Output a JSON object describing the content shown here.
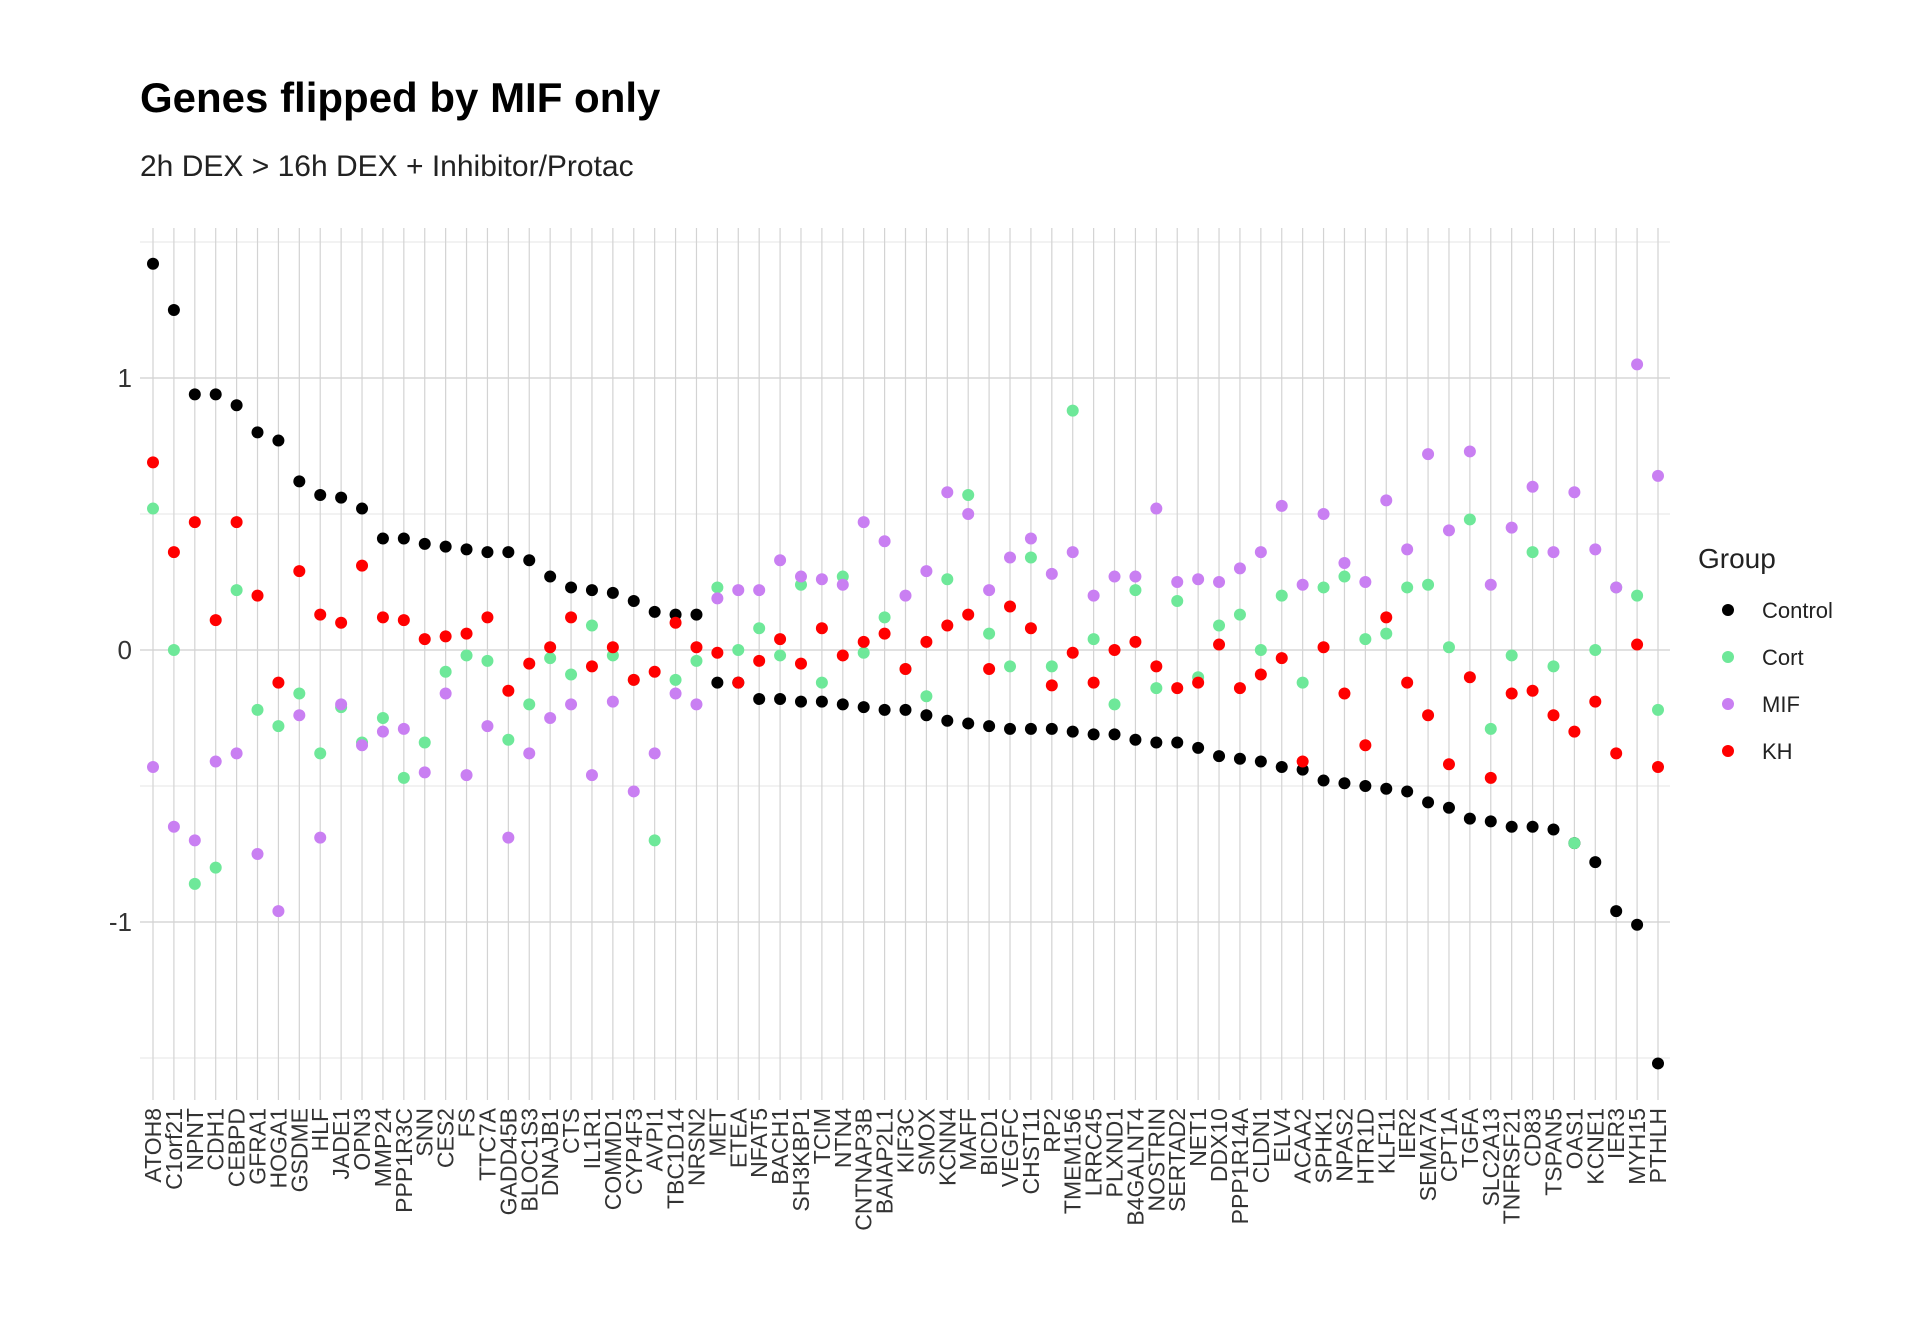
{
  "chart_data": {
    "type": "scatter",
    "title": "Genes flipped by MIF only",
    "subtitle": "2h DEX > 16h DEX + Inhibitor/Protac",
    "xlabel": "",
    "ylabel": "",
    "ylim": [
      -1.6,
      1.5
    ],
    "yticks": [
      -1,
      0,
      1
    ],
    "grid": true,
    "legend_title": "Group",
    "legend_position": "right",
    "categories": [
      "ATOH8",
      "C1orf21",
      "NPNT",
      "CDH1",
      "CEBPD",
      "GFRA1",
      "HOGA1",
      "GSDME",
      "HLF",
      "JADE1",
      "OPN3",
      "MMP24",
      "PPP1R3C",
      "SNN",
      "CES2",
      "FS",
      "TTC7A",
      "GADD45B",
      "BLOC1S3",
      "DNAJB1",
      "CTS",
      "IL1R1",
      "COMMD1",
      "CYP4F3",
      "AVPI1",
      "TBC1D14",
      "NRSN2",
      "MET",
      "ETEA",
      "NFAT5",
      "BACH1",
      "SH3KBP1",
      "TCIM",
      "NTN4",
      "CNTNAP3B",
      "BAIAP2L1",
      "KIF3C",
      "SMOX",
      "KCNN4",
      "MAFF",
      "BICD1",
      "VEGFC",
      "CHST11",
      "RP2",
      "TMEM156",
      "LRRC45",
      "PLXND1",
      "B4GALNT4",
      "NOSTRIN",
      "SERTAD2",
      "NET1",
      "DDX10",
      "PPP1R14A",
      "CLDN1",
      "ELV4",
      "ACAA2",
      "SPHK1",
      "NPAS2",
      "HTR1D",
      "KLF11",
      "IER2",
      "SEMA7A",
      "CPT1A",
      "TGFA",
      "SLC2A13",
      "TNFRSF21",
      "CD83",
      "TSPAN5",
      "OAS1",
      "KCNE1",
      "IER3",
      "MYH15",
      "PTHLH"
    ],
    "series": [
      {
        "name": "Control",
        "color": "#000000",
        "values": [
          1.42,
          1.25,
          0.94,
          0.94,
          0.9,
          0.8,
          0.77,
          0.62,
          0.57,
          0.56,
          0.52,
          0.41,
          0.41,
          0.39,
          0.38,
          0.37,
          0.36,
          0.36,
          0.33,
          0.27,
          0.23,
          0.22,
          0.21,
          0.18,
          0.14,
          0.13,
          0.13,
          -0.12,
          -0.12,
          -0.18,
          -0.18,
          -0.19,
          -0.19,
          -0.2,
          -0.21,
          -0.22,
          -0.22,
          -0.24,
          -0.26,
          -0.27,
          -0.28,
          -0.29,
          -0.29,
          -0.29,
          -0.3,
          -0.31,
          -0.31,
          -0.33,
          -0.34,
          -0.34,
          -0.36,
          -0.39,
          -0.4,
          -0.41,
          -0.43,
          -0.44,
          -0.48,
          -0.49,
          -0.5,
          -0.51,
          -0.52,
          -0.56,
          -0.58,
          -0.62,
          -0.63,
          -0.65,
          -0.65,
          -0.66,
          -0.71,
          -0.78,
          -0.96,
          -1.01,
          -1.52
        ]
      },
      {
        "name": "Cort",
        "color": "#6ee899",
        "values": [
          0.52,
          0.0,
          -0.86,
          -0.8,
          0.22,
          -0.22,
          -0.28,
          -0.16,
          -0.38,
          -0.21,
          -0.34,
          -0.25,
          -0.47,
          -0.34,
          -0.08,
          -0.02,
          -0.04,
          -0.33,
          -0.2,
          -0.03,
          -0.09,
          0.09,
          -0.02,
          -0.11,
          -0.7,
          -0.11,
          -0.04,
          0.23,
          0.0,
          0.08,
          -0.02,
          0.24,
          -0.12,
          0.27,
          -0.01,
          0.12,
          -0.07,
          -0.17,
          0.26,
          0.57,
          0.06,
          -0.06,
          0.34,
          -0.06,
          0.88,
          0.04,
          -0.2,
          0.22,
          -0.14,
          0.18,
          -0.1,
          0.09,
          0.13,
          0.0,
          0.2,
          -0.12,
          0.23,
          0.27,
          0.04,
          0.06,
          0.23,
          0.24,
          0.01,
          0.48,
          -0.29,
          -0.02,
          0.36,
          -0.06,
          -0.71,
          0.0,
          0.23,
          0.2,
          -0.22
        ]
      },
      {
        "name": "MIF",
        "color": "#c97ff2",
        "values": [
          -0.43,
          -0.65,
          -0.7,
          -0.41,
          -0.38,
          -0.75,
          -0.96,
          -0.24,
          -0.69,
          -0.2,
          -0.35,
          -0.3,
          -0.29,
          -0.45,
          -0.16,
          -0.46,
          -0.28,
          -0.69,
          -0.38,
          -0.25,
          -0.2,
          -0.46,
          -0.19,
          -0.52,
          -0.38,
          -0.16,
          -0.2,
          0.19,
          0.22,
          0.22,
          0.33,
          0.27,
          0.26,
          0.24,
          0.47,
          0.4,
          0.2,
          0.29,
          0.58,
          0.5,
          0.22,
          0.34,
          0.41,
          0.28,
          0.36,
          0.2,
          0.27,
          0.27,
          0.52,
          0.25,
          0.26,
          0.25,
          0.3,
          0.36,
          0.53,
          0.24,
          0.5,
          0.32,
          0.25,
          0.55,
          0.37,
          0.72,
          0.44,
          0.73,
          0.24,
          0.45,
          0.6,
          0.36,
          0.58,
          0.37,
          0.23,
          1.05,
          0.64
        ]
      },
      {
        "name": "KH",
        "color": "#ff0000",
        "values": [
          0.69,
          0.36,
          0.47,
          0.11,
          0.47,
          0.2,
          -0.12,
          0.29,
          0.13,
          0.1,
          0.31,
          0.12,
          0.11,
          0.04,
          0.05,
          0.06,
          0.12,
          -0.15,
          -0.05,
          0.01,
          0.12,
          -0.06,
          0.01,
          -0.11,
          -0.08,
          0.1,
          0.01,
          -0.01,
          -0.12,
          -0.04,
          0.04,
          -0.05,
          0.08,
          -0.02,
          0.03,
          0.06,
          -0.07,
          0.03,
          0.09,
          0.13,
          -0.07,
          0.16,
          0.08,
          -0.13,
          -0.01,
          -0.12,
          0.0,
          0.03,
          -0.06,
          -0.14,
          -0.12,
          0.02,
          -0.14,
          -0.09,
          -0.03,
          -0.41,
          0.01,
          -0.16,
          -0.35,
          0.12,
          -0.12,
          -0.24,
          -0.42,
          -0.1,
          -0.47,
          -0.16,
          -0.15,
          -0.24,
          -0.3,
          -0.19,
          -0.38,
          0.02,
          -0.43
        ]
      }
    ]
  }
}
